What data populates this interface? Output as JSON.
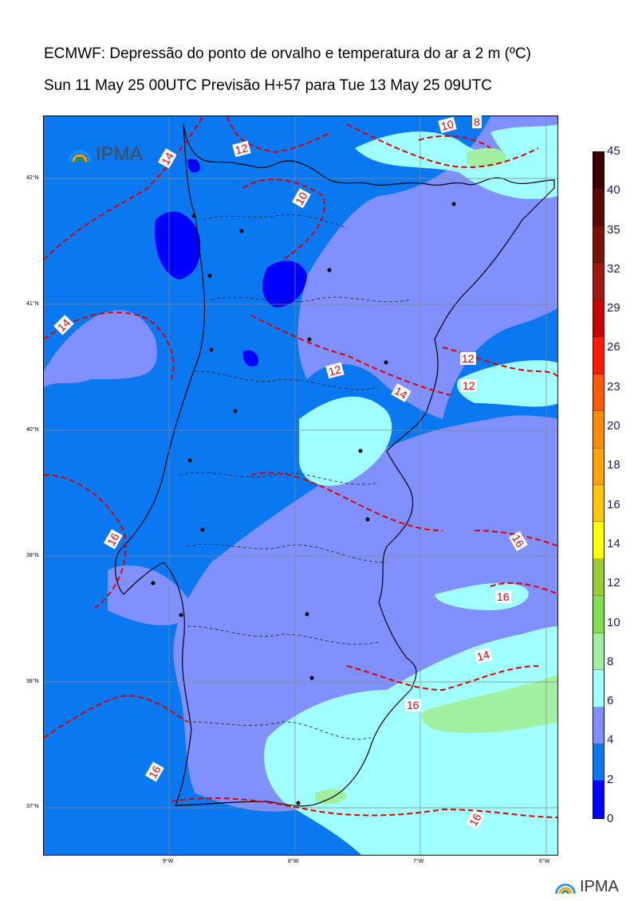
{
  "title": {
    "line1": "ECMWF: Depressão do ponto de orvalho e temperatura do ar a 2 m (ºC)",
    "line2": "Sun 11 May 25 00UTC Previsão H+57 para Tue 13 May 25 09UTC"
  },
  "brand": {
    "map_logo": "IPMA",
    "footer_logo": "IPMA"
  },
  "axes": {
    "latitudes": [
      "42°N",
      "41°N",
      "40°N",
      "39°N",
      "38°N",
      "37°N"
    ],
    "longitudes": [
      "9°W",
      "8°W",
      "7°W",
      "6°W"
    ]
  },
  "colorbar": {
    "ticks": [
      "45",
      "40",
      "35",
      "32",
      "29",
      "26",
      "23",
      "20",
      "18",
      "16",
      "14",
      "12",
      "10",
      "8",
      "6",
      "4",
      "2",
      "0"
    ],
    "colors": [
      "#3a0000",
      "#5a0a00",
      "#7a1200",
      "#a01810",
      "#c80000",
      "#ff1a00",
      "#ff5a00",
      "#ff8c00",
      "#ffa500",
      "#ffc800",
      "#ffff00",
      "#9acd32",
      "#80e050",
      "#a0f0a0",
      "#a0ffff",
      "#8090ff",
      "#0a78f0",
      "#0000ff"
    ]
  },
  "temperature_labels": [
    "12",
    "12",
    "12",
    "12",
    "10",
    "10",
    "8",
    "14",
    "14",
    "14",
    "14",
    "16",
    "16",
    "16",
    "16",
    "16",
    "16"
  ],
  "colors": {
    "dep_0_2": "#0000ff",
    "dep_2_4": "#0a78f0",
    "dep_4_6": "#8090ff",
    "dep_6_8": "#a0ffff",
    "dep_8_10": "#a0f0a0",
    "contour": "#dd0000"
  }
}
